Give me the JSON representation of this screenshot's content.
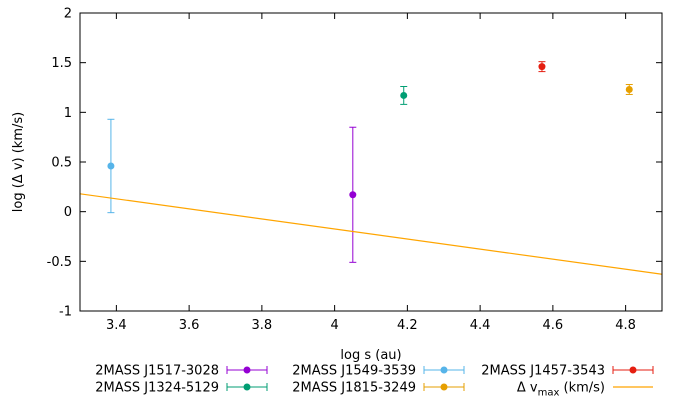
{
  "chart_data": {
    "type": "scatter",
    "xlabel": "log s (au)",
    "ylabel": "log (Δ v) (km/s)",
    "xlim": [
      3.3,
      4.9
    ],
    "ylim": [
      -1,
      2
    ],
    "x_ticks": [
      {
        "value": 3.4,
        "label": "3.4"
      },
      {
        "value": 3.6,
        "label": "3.6"
      },
      {
        "value": 3.8,
        "label": "3.8"
      },
      {
        "value": 4.0,
        "label": "4"
      },
      {
        "value": 4.2,
        "label": "4.2"
      },
      {
        "value": 4.4,
        "label": "4.4"
      },
      {
        "value": 4.6,
        "label": "4.6"
      },
      {
        "value": 4.8,
        "label": "4.8"
      }
    ],
    "y_ticks": [
      {
        "value": -1,
        "label": "-1"
      },
      {
        "value": -0.5,
        "label": "-0.5"
      },
      {
        "value": 0,
        "label": "0"
      },
      {
        "value": 0.5,
        "label": "0.5"
      },
      {
        "value": 1,
        "label": "1"
      },
      {
        "value": 1.5,
        "label": "1.5"
      },
      {
        "value": 2,
        "label": "2"
      }
    ],
    "grid": false,
    "legend_position": "bottom",
    "series": [
      {
        "name": "2MASS J1517-3028",
        "color": "#9400d3",
        "marker": "circle",
        "points": [
          {
            "x": 4.05,
            "y": 0.17,
            "ylow": -0.51,
            "yhigh": 0.85
          }
        ]
      },
      {
        "name": "2MASS J1549-3539",
        "color": "#56b4e9",
        "marker": "circle",
        "points": [
          {
            "x": 3.385,
            "y": 0.46,
            "ylow": -0.01,
            "yhigh": 0.93
          }
        ]
      },
      {
        "name": "2MASS J1457-3543",
        "color": "#e51e10",
        "marker": "circle",
        "points": [
          {
            "x": 4.57,
            "y": 1.46,
            "ylow": 1.41,
            "yhigh": 1.51
          }
        ]
      },
      {
        "name": "2MASS J1324-5129",
        "color": "#009e73",
        "marker": "circle",
        "points": [
          {
            "x": 4.19,
            "y": 1.17,
            "ylow": 1.08,
            "yhigh": 1.26
          }
        ]
      },
      {
        "name": "2MASS J1815-3249",
        "color": "#e69f00",
        "marker": "circle",
        "points": [
          {
            "x": 4.81,
            "y": 1.23,
            "ylow": 1.18,
            "yhigh": 1.28
          }
        ]
      },
      {
        "name": "Δ v",
        "name_sub": "max",
        "name_suffix": " (km/s)",
        "color": "#ffa500",
        "marker": "line",
        "line": [
          {
            "x": 3.3,
            "y": 0.18
          },
          {
            "x": 4.9,
            "y": -0.63
          }
        ]
      }
    ]
  }
}
